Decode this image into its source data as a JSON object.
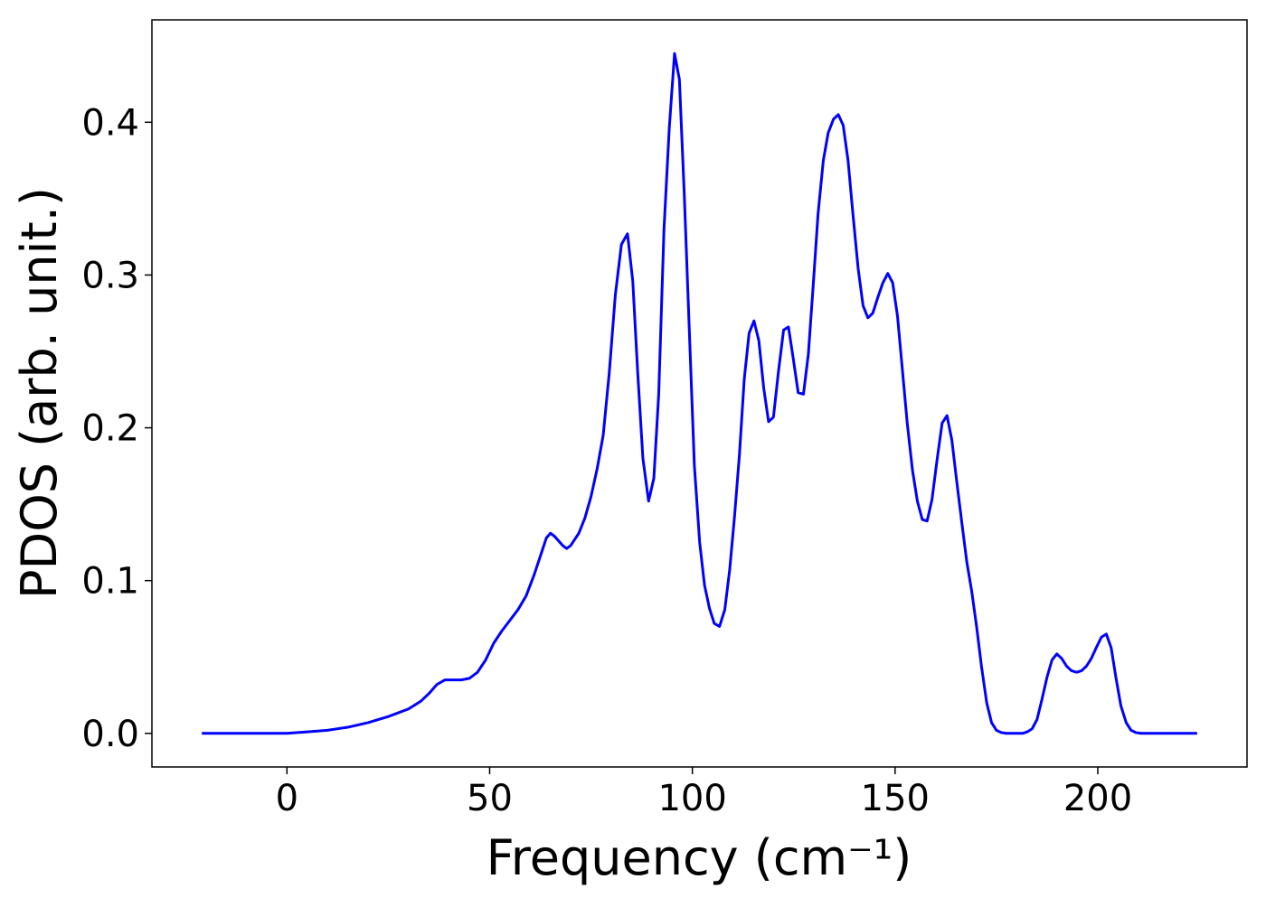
{
  "chart_data": {
    "type": "line",
    "xlabel": "Frequency (cm⁻¹)",
    "ylabel": "PDOS (arb. unit.)",
    "xlim": [
      -33.3,
      236.8
    ],
    "ylim": [
      -0.022,
      0.467
    ],
    "xticks": [
      0,
      50,
      100,
      150,
      200
    ],
    "yticks": [
      {
        "value": 0,
        "label": "0.0"
      },
      0.1,
      0.2,
      0.3,
      0.4
    ],
    "grid": false,
    "series": [
      {
        "name": "PDOS",
        "color": "#0000ff",
        "x": [
          -21,
          -10,
          0,
          5,
          10,
          15,
          20,
          25,
          30,
          33,
          35,
          37,
          39,
          41,
          43,
          45,
          47,
          49,
          51,
          53,
          55,
          57,
          59,
          61,
          63,
          64,
          65,
          66,
          68,
          69,
          70,
          72,
          73.5,
          75,
          76.5,
          78,
          79.5,
          81,
          82.5,
          84,
          85.3,
          86.5,
          87.8,
          89.2,
          90.5,
          91.7,
          93,
          94.3,
          95.6,
          96.8,
          98,
          99.3,
          100.5,
          101.8,
          103,
          104.2,
          105.4,
          106.7,
          108,
          109.2,
          110.4,
          111.6,
          112.8,
          114,
          115.2,
          116.4,
          117.6,
          118.8,
          120,
          121.2,
          122.5,
          123.7,
          124.9,
          126.1,
          127.4,
          128.6,
          129.8,
          131,
          132.3,
          133.5,
          134.8,
          136,
          137.2,
          138.4,
          139.6,
          140.9,
          142.1,
          143.3,
          144.5,
          145.7,
          147,
          148.2,
          149.4,
          150.6,
          151.8,
          153,
          154.3,
          155.5,
          156.7,
          157.9,
          159.1,
          160.4,
          161.6,
          162.8,
          164,
          165.2,
          166.5,
          167.7,
          168.9,
          170.1,
          171.3,
          172.6,
          173.8,
          175,
          176.2,
          177.4,
          181.5,
          182.6,
          183.8,
          185,
          186.2,
          187.5,
          188.7,
          189.9,
          191.1,
          192.3,
          193.5,
          194.8,
          196,
          197.2,
          198.4,
          199.6,
          200.9,
          202.1,
          203.3,
          204.5,
          205.7,
          207,
          208.2,
          209.4,
          210.6,
          224.5
        ],
        "values": [
          0,
          0,
          0,
          0.001,
          0.002,
          0.004,
          0.007,
          0.011,
          0.016,
          0.021,
          0.026,
          0.032,
          0.035,
          0.035,
          0.035,
          0.036,
          0.04,
          0.048,
          0.059,
          0.067,
          0.074,
          0.081,
          0.09,
          0.104,
          0.12,
          0.128,
          0.131,
          0.129,
          0.123,
          0.121,
          0.123,
          0.131,
          0.141,
          0.155,
          0.173,
          0.195,
          0.236,
          0.287,
          0.32,
          0.327,
          0.296,
          0.237,
          0.18,
          0.152,
          0.167,
          0.222,
          0.33,
          0.396,
          0.445,
          0.428,
          0.353,
          0.26,
          0.175,
          0.125,
          0.097,
          0.082,
          0.072,
          0.07,
          0.081,
          0.107,
          0.142,
          0.182,
          0.232,
          0.262,
          0.27,
          0.257,
          0.226,
          0.204,
          0.207,
          0.236,
          0.264,
          0.266,
          0.245,
          0.223,
          0.222,
          0.248,
          0.293,
          0.34,
          0.375,
          0.393,
          0.402,
          0.405,
          0.398,
          0.375,
          0.34,
          0.304,
          0.28,
          0.272,
          0.275,
          0.285,
          0.295,
          0.301,
          0.295,
          0.273,
          0.238,
          0.203,
          0.172,
          0.152,
          0.14,
          0.139,
          0.153,
          0.18,
          0.203,
          0.208,
          0.192,
          0.165,
          0.137,
          0.112,
          0.093,
          0.07,
          0.044,
          0.02,
          0.007,
          0.002,
          0.0005,
          0,
          0,
          0.001,
          0.003,
          0.009,
          0.022,
          0.037,
          0.048,
          0.052,
          0.049,
          0.044,
          0.041,
          0.04,
          0.041,
          0.044,
          0.049,
          0.056,
          0.063,
          0.065,
          0.056,
          0.036,
          0.018,
          0.007,
          0.002,
          0.0005,
          0,
          0
        ]
      }
    ]
  }
}
